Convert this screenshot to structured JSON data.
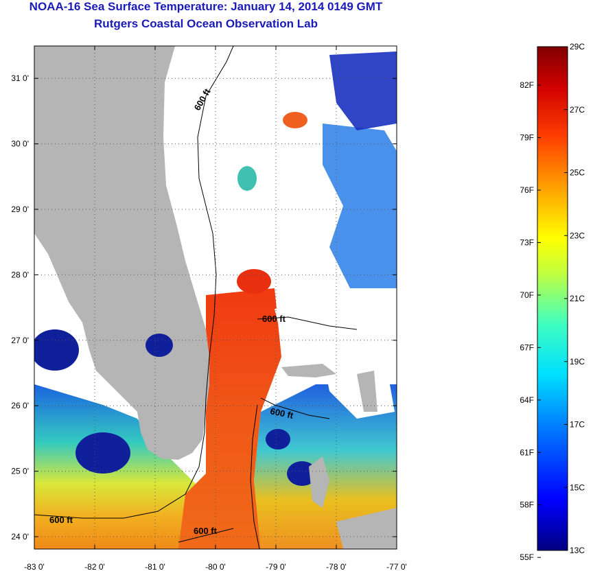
{
  "header": {
    "title": "NOAA-16 Sea Surface Temperature:  January 14, 2014 0149 GMT",
    "subtitle": "Rutgers Coastal Ocean Observation Lab"
  },
  "map": {
    "lon_range": [
      -83.0,
      -77.0
    ],
    "lat_range": [
      23.8,
      31.5
    ],
    "x_ticks": [
      "-83 0'",
      "-82 0'",
      "-81 0'",
      "-80 0'",
      "-79 0'",
      "-78 0'",
      "-77 0'"
    ],
    "y_ticks": [
      "24 0'",
      "25 0'",
      "26 0'",
      "27 0'",
      "28 0'",
      "29 0'",
      "30 0'",
      "31 0'"
    ],
    "grid": "dotted",
    "contour_labels": [
      "600 ft",
      "600 ft",
      "600 ft",
      "600 ft",
      "600 ft"
    ],
    "colors": {
      "land": "#b5b5b5",
      "cloud": "#ffffff",
      "contour": "#000000"
    }
  },
  "colorbar": {
    "fahrenheit_labels": [
      "82F",
      "79F",
      "76F",
      "73F",
      "70F",
      "67F",
      "64F",
      "61F",
      "58F",
      "55F"
    ],
    "celsius_labels": [
      "29C",
      "27C",
      "25C",
      "23C",
      "21C",
      "19C",
      "17C",
      "15C",
      "13C"
    ],
    "range_c": [
      13,
      29
    ],
    "palette": [
      "#000080",
      "#0000ff",
      "#0080ff",
      "#00e0ff",
      "#40ffc0",
      "#c0ff40",
      "#ffff00",
      "#ffa000",
      "#ff4000",
      "#d00000",
      "#800000"
    ]
  }
}
